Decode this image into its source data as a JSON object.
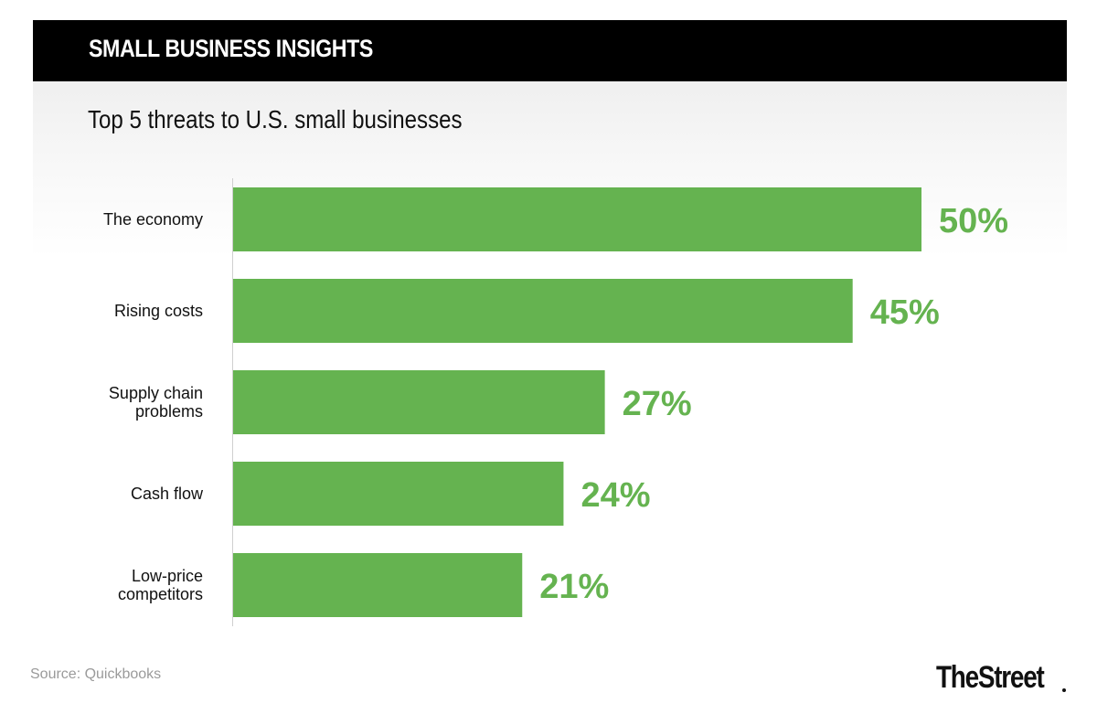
{
  "header": {
    "title": "SMALL BUSINESS INSIGHTS"
  },
  "colors": {
    "bar": "#65b350",
    "value_label": "#65b350",
    "header_bg": "#000000",
    "axis": "#cfcfcf"
  },
  "chart_data": {
    "type": "bar",
    "orientation": "horizontal",
    "title": "Top 5 threats to U.S. small businesses",
    "categories": [
      [
        "The economy"
      ],
      [
        "Rising costs"
      ],
      [
        "Supply chain",
        "problems"
      ],
      [
        "Cash flow"
      ],
      [
        "Low-price",
        "competitors"
      ]
    ],
    "values": [
      50,
      45,
      27,
      24,
      21
    ],
    "value_labels": [
      "50%",
      "45%",
      "27%",
      "24%",
      "21%"
    ],
    "unit": "%",
    "xlim": [
      0,
      50
    ],
    "grid": false,
    "legend": "none"
  },
  "footer": {
    "source": "Source: Quickbooks",
    "brand": "TheStreet"
  }
}
